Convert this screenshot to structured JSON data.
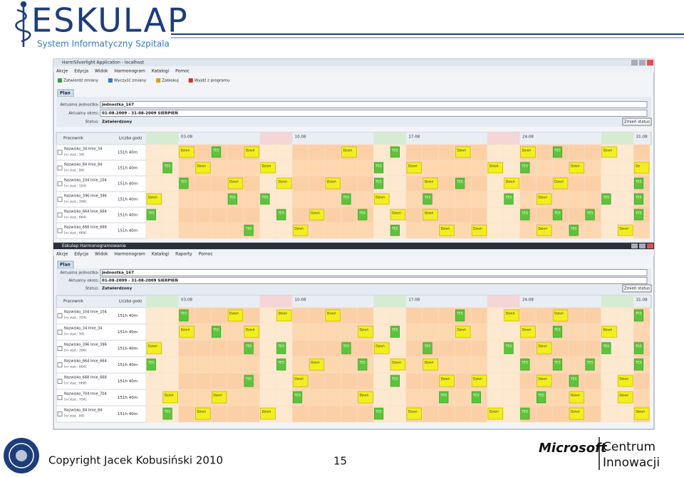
{
  "logo": {
    "title": "ESKULAP",
    "subtitle": "System Informatyczny Szpitala"
  },
  "screens": [
    {
      "window_title": "HarmSilverlight Application - localhost",
      "menu": [
        "Akcje",
        "Edycja",
        "Widok",
        "Harmonogram",
        "Katalogi",
        "Pomoc"
      ],
      "toolbar": [
        "Zatwierdź zmiany",
        "Wyczyść zmiany",
        "Zablokuj",
        "Wyjdź z programu"
      ],
      "tab": "Plan",
      "fields": [
        {
          "label": "Aktualna jednostka:",
          "value": "Jednostka_167"
        },
        {
          "label": "Aktualny okres:",
          "value": "01-08-2009 - 31-08-2009  SIERPIEŃ"
        },
        {
          "label": "Status:",
          "value": "Zatwierdzony"
        }
      ],
      "button": "Zmień status",
      "columns": [
        "Pracownik",
        "Liczba godz"
      ],
      "dates": [
        "03-08",
        "10-08",
        "17-08",
        "24-08",
        "31-08"
      ],
      "rows": [
        {
          "name": "Nazwisko_34 Imie_34",
          "stat": "[nr stat.: 34]",
          "hours": "151h 40m",
          "shifts": {
            "3": "Dzień",
            "5": "TES",
            "7": "Dzień",
            "13": "Dzień",
            "16": "TES",
            "20": "Dzień",
            "24": "Dzień",
            "26": "TES",
            "29": "Dzień"
          }
        },
        {
          "name": "Nazwisko_84 Imie_84",
          "stat": "[nr stat.: 84]",
          "hours": "151h 40m",
          "shifts": {
            "2": "TES",
            "4": "Dzień",
            "8": "Dzień",
            "15": "TES",
            "17": "Dzień",
            "22": "Dzień",
            "24": "TES",
            "27": "Dzień",
            "31": "Dz"
          }
        },
        {
          "name": "Nazwisko_104 Imie_104",
          "stat": "[nr stat.: 104]",
          "hours": "151h 40m",
          "shifts": {
            "3": "TES",
            "6": "Dzień",
            "9": "Dzień",
            "12": "Dzień",
            "15": "TES",
            "18": "Dzień",
            "20": "TES",
            "23": "Dzień",
            "26": "Dzień",
            "31": "TES"
          }
        },
        {
          "name": "Nazwisko_396 Imie_396",
          "stat": "[nr stat.: 396]",
          "hours": "151h 40m",
          "shifts": {
            "1": "Dzień",
            "6": "TES",
            "8": "TES",
            "13": "TES",
            "15": "Dzień",
            "18": "TES",
            "23": "TES",
            "25": "Dzień",
            "29": "TES",
            "31": "TES"
          }
        },
        {
          "name": "Nazwisko_664 Imie_664",
          "stat": "[nr stat.: 664]",
          "hours": "151h 40m",
          "shifts": {
            "1": "TES",
            "9": "TES",
            "11": "Dzień",
            "14": "TES",
            "16": "Dzień",
            "18": "Dzień",
            "24": "TES",
            "26": "TES",
            "28": "TES",
            "31": "TES"
          }
        },
        {
          "name": "Nazwisko_668 Imie_668",
          "stat": "[nr stat.: 668]",
          "hours": "151h 40m",
          "shifts": {
            "7": "TES",
            "10": "Dzień",
            "16": "TES",
            "19": "Dzień",
            "21": "Dzień",
            "25": "Dzień",
            "27": "TES",
            "30": "Dzień"
          }
        }
      ]
    },
    {
      "window_title": "Eskulap Harmonogramowanie",
      "menu": [
        "Akcje",
        "Edycja",
        "Widok",
        "Harmonogram",
        "Katalogi",
        "Raporty",
        "Pomoc"
      ],
      "tab": "Plan",
      "fields": [
        {
          "label": "Aktualna jednostka:",
          "value": "Jednostka_167"
        },
        {
          "label": "Aktualny okres:",
          "value": "01-08-2009 - 31-08-2009  SIERPIEŃ"
        },
        {
          "label": "Status:",
          "value": "Zatwierdzony"
        }
      ],
      "button": "Zmień status",
      "columns": [
        "Pracownik",
        "Liczba godz"
      ],
      "dates": [
        "03-08",
        "10-08",
        "17-08",
        "24-08",
        "31-08"
      ],
      "rows": [
        {
          "name": "Nazwisko_104 Imie_104",
          "stat": "[nr stat.: 104]",
          "hours": "151h 40m",
          "shifts": {
            "3": "TES",
            "6": "Dzień",
            "9": "Dzień",
            "12": "Dzień",
            "20": "TES",
            "23": "Dzień",
            "26": "Dzień",
            "31": "TES"
          }
        },
        {
          "name": "Nazwisko_34 Imie_34",
          "stat": "[nr stat.: 34]",
          "hours": "151h 40m",
          "shifts": {
            "3": "Dzień",
            "5": "TES",
            "7": "Dzień",
            "14": "Dzień",
            "16": "TES",
            "20": "Dzień",
            "24": "Dzień",
            "26": "TES",
            "29": "Dzień"
          }
        },
        {
          "name": "Nazwisko_396 Imie_396",
          "stat": "[nr stat.: 396]",
          "hours": "151h 40m",
          "shifts": {
            "1": "Dzień",
            "7": "TES",
            "9": "TES",
            "13": "TES",
            "15": "Dzień",
            "18": "TES",
            "23": "TES",
            "25": "Dzień",
            "29": "TES",
            "31": "TES"
          }
        },
        {
          "name": "Nazwisko_664 Imie_664",
          "stat": "[nr stat.: 664]",
          "hours": "151h 40m",
          "shifts": {
            "1": "TES",
            "9": "TES",
            "11": "Dzień",
            "14": "TES",
            "16": "Dzień",
            "18": "Dzień",
            "24": "TES",
            "26": "TES",
            "28": "TES",
            "31": "TES"
          }
        },
        {
          "name": "Nazwisko_668 Imie_668",
          "stat": "[nr stat.: 668]",
          "hours": "151h 40m",
          "shifts": {
            "7": "TES",
            "10": "Dzień",
            "16": "TES",
            "19": "Dzień",
            "21": "Dzień",
            "25": "Dzień",
            "27": "TES",
            "30": "Dzień"
          }
        },
        {
          "name": "Nazwisko_704 Imie_704",
          "stat": "[nr stat.: 704]",
          "hours": "151h 40m",
          "shifts": {
            "2": "Dzień",
            "5": "Dzień",
            "10": "TES",
            "14": "Dzień",
            "19": "TES",
            "21": "TES",
            "25": "TES",
            "27": "Dzień",
            "30": "Dzień"
          }
        },
        {
          "name": "Nazwisko_84 Imie_84",
          "stat": "[nr stat.: 84]",
          "hours": "151h 40m",
          "shifts": {
            "2": "TES",
            "4": "Dzień",
            "8": "Dzień",
            "15": "TES",
            "17": "Dzień",
            "22": "Dzień",
            "24": "TES",
            "27": "Dzień",
            "31": "Dzień"
          }
        }
      ]
    }
  ],
  "footer": {
    "copyright": "Copyright Jacek Kobusiński 2010",
    "page": "15",
    "brand": "Microsoft",
    "centre_1": "Centrum",
    "centre_2": "Innowacji"
  }
}
